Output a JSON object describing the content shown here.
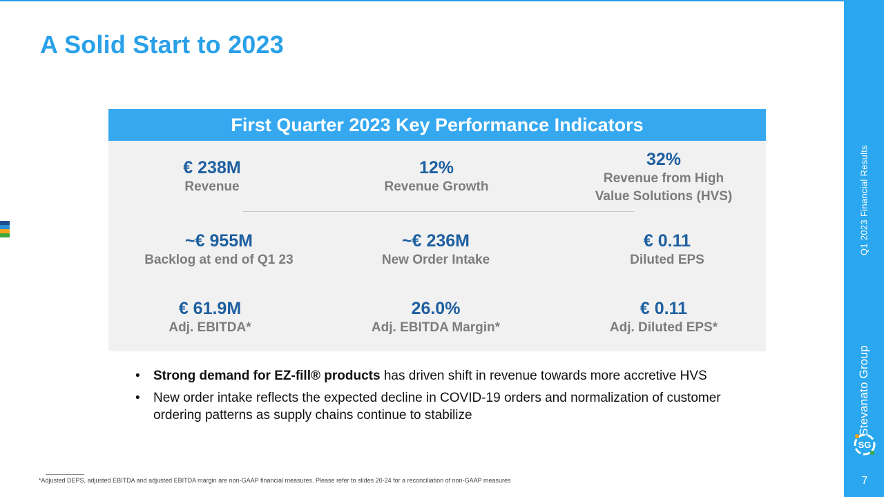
{
  "slide": {
    "title": "A Solid Start to 2023",
    "side_label": "Q1 2023 Financial Results",
    "brand": "Stevanato Group",
    "page_number": "7"
  },
  "kpi": {
    "header": "First Quarter 2023 Key Performance Indicators",
    "items": [
      {
        "value": "€ 238M",
        "label": "Revenue"
      },
      {
        "value": "12%",
        "label": "Revenue Growth"
      },
      {
        "value": "32%",
        "label": "Revenue from High",
        "label2": "Value Solutions (HVS)"
      },
      {
        "value": "~€ 955M",
        "label": "Backlog at end of Q1 23"
      },
      {
        "value": "~€ 236M",
        "label": "New Order Intake"
      },
      {
        "value": "€ 0.11",
        "label": "Diluted EPS"
      },
      {
        "value": "€ 61.9M",
        "label": "Adj. EBITDA*"
      },
      {
        "value": "26.0%",
        "label": "Adj. EBITDA Margin*"
      },
      {
        "value": "€ 0.11",
        "label": "Adj. Diluted EPS*"
      }
    ]
  },
  "bullets": [
    {
      "bold": "Strong demand for EZ-fill® products",
      "text": " has driven shift in revenue towards more accretive HVS"
    },
    {
      "bold": "",
      "text": "New order intake reflects the expected decline in COVID-19 orders and normalization of customer ordering patterns as supply chains continue to stabilize"
    }
  ],
  "footnote": "*Adjusted DEPS, adjusted EBITDA and adjusted EBITDA margin are non-GAAP financial measures. Please refer to slides 20-24 for a reconciliation of non-GAAP measures",
  "colors": {
    "accent": "#2aa7ee",
    "kpi_value": "#1e5fa0",
    "left_bars": [
      "#1d4f8c",
      "#2c8fd6",
      "#f2a31b",
      "#3ea63b"
    ]
  }
}
